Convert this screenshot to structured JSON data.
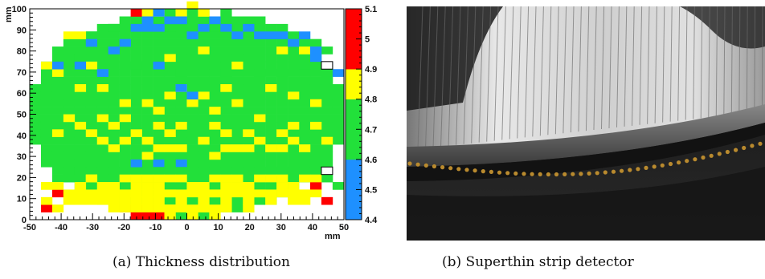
{
  "panels": {
    "a": {
      "caption": "(a) Thickness distribution"
    },
    "b": {
      "caption": "(b) Superthin strip detector"
    }
  },
  "chart_data": {
    "type": "heatmap",
    "xlabel": "mm",
    "ylabel": "mm",
    "xlim": [
      -50,
      50
    ],
    "ylim": [
      0,
      100
    ],
    "x_ticks": [
      "-50",
      "-40",
      "-30",
      "-20",
      "-10",
      "0",
      "10",
      "20",
      "30",
      "40",
      "50"
    ],
    "y_ticks": [
      "0",
      "10",
      "20",
      "30",
      "40",
      "50",
      "60",
      "70",
      "80",
      "90",
      "100"
    ],
    "bin_size": 3.57,
    "wafer_center": [
      0,
      50
    ],
    "wafer_radius": 51,
    "z_levels": [
      {
        "min": 4.4,
        "max": 4.5,
        "color": "#1e90ff"
      },
      {
        "min": 4.5,
        "max": 4.6,
        "color": "#1e90ff"
      },
      {
        "min": 4.6,
        "max": 4.7,
        "color": "#22e03a"
      },
      {
        "min": 4.7,
        "max": 4.8,
        "color": "#22e03a"
      },
      {
        "min": 4.8,
        "max": 4.9,
        "color": "#ffff00"
      },
      {
        "min": 4.9,
        "max": 5.0,
        "color": "#ff0000"
      },
      {
        "min": 5.0,
        "max": 5.1,
        "color": "#ff0000"
      }
    ],
    "z_ticks": [
      "4.4",
      "4.5",
      "4.6",
      "4.7",
      "4.8",
      "4.9",
      "5",
      "5.1"
    ],
    "default_value": 4.7,
    "cells": [
      [
        -46.4,
        9.1,
        4.0
      ],
      [
        -46.4,
        10.1,
        4.0
      ],
      [
        -10.7,
        26.1,
        4.6
      ],
      [
        -3.6,
        26.1,
        4.6
      ],
      [
        -17.9,
        26.1,
        4.6
      ],
      [
        -32.1,
        23.1,
        4.65
      ],
      [
        -35.7,
        22.1,
        4.65
      ],
      [
        -28.6,
        21.1,
        4.65
      ],
      [
        -7.1,
        24.1,
        4.65
      ],
      [
        0.0,
        23.1,
        4.65
      ],
      [
        3.6,
        24.1,
        4.65
      ],
      [
        -21.4,
        22.1,
        4.65
      ],
      [
        -14.3,
        21.1,
        4.65
      ],
      [
        -14.3,
        23.1,
        4.65
      ],
      [
        7.1,
        23.1,
        4.65
      ],
      [
        10.7,
        22.1,
        4.65
      ],
      [
        -10.7,
        22.1,
        4.65
      ],
      [
        3.6,
        22.1,
        4.65
      ],
      [
        -3.6,
        22.1,
        4.65
      ],
      [
        14.3,
        21.1,
        4.65
      ],
      [
        -25.0,
        20.1,
        4.65
      ],
      [
        -7.1,
        20.1,
        4.65
      ],
      [
        17.9,
        20.1,
        4.65
      ],
      [
        32.1,
        20.1,
        4.65
      ],
      [
        39.3,
        19.1,
        4.65
      ],
      [
        42.9,
        18.1,
        4.65
      ],
      [
        35.7,
        18.1,
        4.65
      ],
      [
        -39.3,
        18.1,
        4.65
      ],
      [
        -28.6,
        19.1,
        4.65
      ],
      [
        -17.9,
        19.1,
        4.65
      ],
      [
        25.0,
        21.1,
        4.65
      ],
      [
        28.6,
        22.1,
        4.65
      ],
      [
        -42.9,
        17.1,
        4.65
      ],
      [
        46.4,
        15.1,
        4.65
      ],
      [
        42.9,
        16.1,
        4.65
      ],
      [
        -42.9,
        11.1,
        4.95
      ],
      [
        -46.4,
        4.1,
        4.95
      ],
      [
        39.3,
        14.1,
        4.95
      ],
      [
        42.9,
        8.1,
        4.95
      ],
      [
        -21.4,
        2.1,
        4.95
      ],
      [
        -17.9,
        1.1,
        4.95
      ],
      [
        -14.3,
        0.1,
        4.95
      ],
      [
        -10.7,
        1.1,
        4.95
      ],
      [
        -10.7,
        0.1,
        4.95
      ],
      [
        -14.3,
        2.1,
        4.95
      ],
      [
        -46.4,
        6.1,
        4.85
      ],
      [
        -42.9,
        5.1,
        4.85
      ],
      [
        -39.3,
        6.1,
        4.85
      ],
      [
        -39.3,
        7.1,
        4.85
      ],
      [
        -35.7,
        8.1,
        4.85
      ],
      [
        -32.1,
        7.1,
        4.85
      ],
      [
        -28.6,
        8.1,
        4.85
      ],
      [
        -28.6,
        9.1,
        4.85
      ],
      [
        -25.0,
        8.1,
        4.85
      ],
      [
        -21.4,
        9.1,
        4.85
      ],
      [
        -21.4,
        7.1,
        4.85
      ],
      [
        -17.9,
        8.1,
        4.85
      ],
      [
        -14.3,
        9.1,
        4.85
      ],
      [
        -14.3,
        7.1,
        4.85
      ],
      [
        -10.7,
        8.1,
        4.85
      ],
      [
        -7.1,
        9.1,
        4.85
      ],
      [
        -3.6,
        8.1,
        4.85
      ],
      [
        0.0,
        9.1,
        4.85
      ],
      [
        3.6,
        8.1,
        4.85
      ],
      [
        7.1,
        9.1,
        4.85
      ],
      [
        10.7,
        8.1,
        4.85
      ],
      [
        14.3,
        9.1,
        4.85
      ],
      [
        17.9,
        8.1,
        4.85
      ],
      [
        21.4,
        9.1,
        4.85
      ],
      [
        25.0,
        8.1,
        4.85
      ],
      [
        28.6,
        9.1,
        4.85
      ],
      [
        32.1,
        8.1,
        4.85
      ],
      [
        35.7,
        9.1,
        4.85
      ],
      [
        35.7,
        7.1,
        4.85
      ],
      [
        -35.7,
        11.1,
        4.85
      ],
      [
        -32.1,
        11.1,
        4.85
      ],
      [
        -25.0,
        10.1,
        4.85
      ],
      [
        -17.9,
        10.1,
        4.85
      ],
      [
        -10.7,
        11.1,
        4.85
      ],
      [
        -3.6,
        10.1,
        4.85
      ],
      [
        3.6,
        11.1,
        4.85
      ],
      [
        10.7,
        10.1,
        4.85
      ],
      [
        17.9,
        11.1,
        4.85
      ],
      [
        25.0,
        10.1,
        4.85
      ],
      [
        32.1,
        11.1,
        4.85
      ],
      [
        39.3,
        10.1,
        4.85
      ],
      [
        -39.3,
        12.1,
        4.85
      ],
      [
        -28.6,
        13.1,
        4.85
      ],
      [
        -21.4,
        12.1,
        4.85
      ],
      [
        -14.3,
        13.1,
        4.85
      ],
      [
        -7.1,
        12.1,
        4.85
      ],
      [
        0.0,
        13.1,
        4.85
      ],
      [
        7.1,
        12.1,
        4.85
      ],
      [
        14.3,
        13.1,
        4.85
      ],
      [
        21.4,
        12.1,
        4.85
      ],
      [
        28.6,
        13.1,
        4.85
      ],
      [
        35.7,
        12.1,
        4.85
      ],
      [
        -42.9,
        14.1,
        4.85
      ],
      [
        -35.7,
        14.1,
        4.85
      ],
      [
        -25.0,
        14.1,
        4.85
      ],
      [
        -10.7,
        14.1,
        4.85
      ],
      [
        3.6,
        14.1,
        4.85
      ],
      [
        17.9,
        14.1,
        4.85
      ],
      [
        32.1,
        14.1,
        4.85
      ],
      [
        -32.1,
        16.1,
        4.85
      ],
      [
        -17.9,
        16.1,
        4.85
      ],
      [
        -3.6,
        16.1,
        4.85
      ],
      [
        10.7,
        16.1,
        4.85
      ],
      [
        25.0,
        16.1,
        4.85
      ],
      [
        39.3,
        16.1,
        4.85
      ],
      [
        -14.3,
        18.1,
        4.85
      ],
      [
        7.1,
        18.1,
        4.85
      ],
      [
        21.4,
        18.1,
        4.85
      ],
      [
        -10.7,
        19.1,
        4.85
      ],
      [
        -32.1,
        18.1,
        4.85
      ],
      [
        -21.4,
        17.1,
        4.85
      ],
      [
        14.3,
        17.1,
        4.85
      ],
      [
        28.6,
        17.1,
        4.85
      ],
      [
        35.7,
        16.1,
        4.85
      ],
      [
        -7.1,
        17.1,
        4.85
      ],
      [
        -46.4,
        13.1,
        4.85
      ],
      [
        -17.9,
        13.1,
        4.85
      ],
      [
        10.7,
        13.1,
        4.85
      ],
      [
        -25.0,
        4.1,
        4.85
      ],
      [
        -17.9,
        4.1,
        4.85
      ],
      [
        -10.7,
        4.1,
        4.85
      ],
      [
        -3.6,
        4.1,
        4.85
      ],
      [
        3.6,
        4.1,
        4.85
      ],
      [
        10.7,
        4.1,
        4.85
      ],
      [
        -21.4,
        5.1,
        4.85
      ],
      [
        -14.3,
        5.1,
        4.85
      ],
      [
        -7.1,
        5.1,
        4.85
      ],
      [
        0.0,
        5.1,
        4.85
      ],
      [
        7.1,
        5.1,
        4.85
      ],
      [
        17.9,
        5.1,
        4.85
      ],
      [
        -7.1,
        3.1,
        4.85
      ],
      [
        3.6,
        3.1,
        4.85
      ],
      [
        -7.1,
        1.1,
        4.85
      ],
      [
        0.0,
        1.1,
        4.85
      ],
      [
        7.1,
        1.1,
        4.85
      ],
      [
        -14.3,
        30.1,
        4.85
      ],
      [
        -3.6,
        31.1,
        4.85
      ],
      [
        7.1,
        30.1,
        4.85
      ],
      [
        -7.1,
        32.1,
        4.85
      ],
      [
        10.7,
        32.1,
        4.85
      ],
      [
        -10.7,
        33.1,
        4.85
      ],
      [
        -21.4,
        35.1,
        4.85
      ],
      [
        -25.0,
        31.1,
        4.85
      ],
      [
        14.3,
        31.1,
        4.85
      ],
      [
        17.9,
        33.1,
        4.85
      ],
      [
        21.4,
        35.1,
        4.85
      ],
      [
        25.0,
        31.1,
        4.85
      ],
      [
        28.6,
        33.1,
        4.85
      ],
      [
        32.1,
        35.1,
        4.85
      ],
      [
        35.7,
        31.1,
        4.85
      ],
      [
        -14.3,
        37.1,
        4.85
      ],
      [
        -7.1,
        38.1,
        4.85
      ],
      [
        3.6,
        37.1,
        4.85
      ],
      [
        10.7,
        38.1,
        4.85
      ],
      [
        -28.6,
        37.1,
        4.85
      ],
      [
        -32.1,
        40.1,
        4.85
      ],
      [
        -17.9,
        40.1,
        4.85
      ],
      [
        17.9,
        40.1,
        4.85
      ],
      [
        28.6,
        39.1,
        4.85
      ],
      [
        -3.6,
        41.1,
        4.85
      ],
      [
        7.1,
        41.1,
        4.85
      ],
      [
        -10.7,
        42.1,
        4.85
      ],
      [
        -25.0,
        44.1,
        4.85
      ],
      [
        -35.7,
        44.1,
        4.85
      ],
      [
        -39.3,
        47.1,
        4.85
      ],
      [
        -28.6,
        48.1,
        4.85
      ],
      [
        -21.4,
        46.1,
        4.85
      ],
      [
        21.4,
        46.1,
        4.85
      ],
      [
        32.1,
        44.1,
        4.85
      ],
      [
        39.3,
        41.1,
        4.85
      ],
      [
        -10.7,
        51.1,
        4.85
      ],
      [
        0.0,
        52.1,
        4.85
      ],
      [
        7.1,
        50.1,
        4.85
      ],
      [
        -14.3,
        55.1,
        4.85
      ],
      [
        -7.1,
        58.1,
        4.85
      ],
      [
        3.6,
        56.1,
        4.85
      ],
      [
        14.3,
        53.1,
        4.85
      ],
      [
        -3.6,
        62.1,
        4.85
      ],
      [
        10.7,
        60.1,
        4.85
      ],
      [
        -21.4,
        53.1,
        4.85
      ],
      [
        -42.9,
        40.1,
        4.85
      ],
      [
        42.9,
        36.1,
        4.85
      ],
      [
        -3.6,
        98.1,
        4.85
      ],
      [
        -17.9,
        96.1,
        4.95
      ],
      [
        10.7,
        95.1,
        4.65
      ],
      [
        17.9,
        93.1,
        4.65
      ],
      [
        21.4,
        92.1,
        4.65
      ],
      [
        28.6,
        89.1,
        4.65
      ],
      [
        32.1,
        86.1,
        4.65
      ],
      [
        35.7,
        83.1,
        4.65
      ],
      [
        39.3,
        81.1,
        4.65
      ],
      [
        42.9,
        77.1,
        4.65
      ],
      [
        3.6,
        91.1,
        4.65
      ],
      [
        7.1,
        88.1,
        4.65
      ],
      [
        -7.1,
        89.1,
        4.65
      ],
      [
        -10.7,
        92.1,
        4.65
      ],
      [
        -25.0,
        90.1,
        4.65
      ],
      [
        -32.1,
        87.1,
        4.65
      ],
      [
        -39.3,
        82.1,
        4.65
      ],
      [
        -42.9,
        78.1,
        4.65
      ],
      [
        -35.7,
        76.1,
        4.65
      ],
      [
        -28.6,
        74.1,
        4.65
      ],
      [
        -17.9,
        73.1,
        4.65
      ],
      [
        -10.7,
        71.1,
        4.65
      ],
      [
        -3.6,
        68.1,
        4.65
      ],
      [
        10.7,
        67.1,
        4.65
      ],
      [
        21.4,
        66.1,
        4.65
      ],
      [
        28.6,
        69.1,
        4.65
      ],
      [
        35.7,
        72.1,
        4.65
      ],
      [
        42.9,
        64.1,
        4.65
      ],
      [
        46.4,
        60.1,
        4.65
      ],
      [
        -46.4,
        63.1,
        4.65
      ],
      [
        -42.9,
        66.1,
        4.85
      ],
      [
        -35.7,
        62.1,
        4.85
      ],
      [
        -28.6,
        59.1,
        4.85
      ],
      [
        25.0,
        61.1,
        4.85
      ],
      [
        32.1,
        58.1,
        4.85
      ],
      [
        39.3,
        55.1,
        4.85
      ],
      [
        -46.4,
        70.1,
        4.85
      ],
      [
        -39.3,
        84.1,
        4.85
      ],
      [
        -35.7,
        86.1,
        4.85
      ],
      [
        35.7,
        79.1,
        4.85
      ],
      [
        28.6,
        80.1,
        4.85
      ],
      [
        -32.1,
        71.1,
        4.85
      ],
      [
        -7.1,
        75.1,
        4.85
      ],
      [
        3.6,
        77.1,
        4.85
      ],
      [
        14.3,
        71.1,
        4.85
      ],
      [
        0.0,
        99.1,
        4.85
      ],
      [
        3.6,
        98.1,
        4.85
      ],
      [
        -10.7,
        97.1,
        4.85
      ],
      [
        -14.3,
        96.1,
        4.85
      ],
      [
        -10.7,
        96.1,
        4.45
      ],
      [
        -7.1,
        94.1,
        4.45
      ],
      [
        -3.6,
        93.1,
        4.45
      ],
      [
        -10.7,
        90.1,
        4.45
      ],
      [
        -14.3,
        92.1,
        4.45
      ],
      [
        -17.9,
        90.1,
        4.45
      ],
      [
        -14.3,
        88.1,
        4.45
      ],
      [
        17.9,
        88.1,
        4.45
      ],
      [
        21.4,
        86.1,
        4.45
      ],
      [
        28.6,
        85.1,
        4.45
      ],
      [
        35.7,
        84.1,
        4.45
      ],
      [
        39.3,
        78.1,
        4.45
      ],
      [
        42.9,
        70.1,
        4.45
      ],
      [
        46.4,
        66.1,
        4.45
      ],
      [
        42.9,
        73.1,
        4.45
      ],
      [
        39.3,
        76.1,
        4.45
      ],
      [
        -32.1,
        82.1,
        4.45
      ],
      [
        -35.7,
        72.1,
        4.45
      ],
      [
        -28.6,
        66.1,
        4.45
      ],
      [
        -10.7,
        70.1,
        4.45
      ],
      [
        10.7,
        90.1,
        4.45
      ],
      [
        7.1,
        93.1,
        4.45
      ],
      [
        3.6,
        88.1,
        4.45
      ],
      [
        14.3,
        85.1,
        4.45
      ],
      [
        25.0,
        84.1,
        4.45
      ],
      [
        32.1,
        81.1,
        4.45
      ],
      [
        -21.4,
        81.1,
        4.45
      ],
      [
        -25.0,
        78.1,
        4.45
      ],
      [
        0.0,
        85.1,
        4.45
      ],
      [
        -42.9,
        70.1,
        4.45
      ],
      [
        -3.6,
        61.1,
        4.45
      ],
      [
        0.0,
        57.1,
        4.45
      ]
    ],
    "outline_cells": [
      [
        42.9,
        72.1
      ],
      [
        42.9,
        20.1
      ]
    ]
  }
}
